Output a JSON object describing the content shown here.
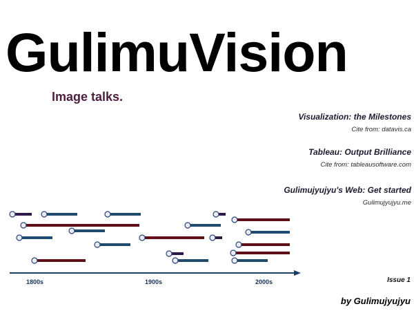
{
  "title": "GulimuVision",
  "tagline": "Image talks.",
  "references": [
    {
      "title": "Visualization: the Milestones",
      "cite": "Cite from: datavis.ca"
    },
    {
      "title": "Tableau: Output Brilliance",
      "cite": "Cite from: tableausoftware.com"
    },
    {
      "title": "Gulimujyujyu's Web: Get started",
      "cite": "Gulimujyujyu.me"
    }
  ],
  "timeline": {
    "axis_labels": [
      "1800s",
      "1900s",
      "2000s"
    ],
    "colors": {
      "red": "#5e0f18",
      "blue": "#1e4a6b",
      "purple": "#2e1a4a",
      "axis": "#1a3e66",
      "node_fill": "#e8eef8",
      "node_stroke": "#2c3e78"
    }
  },
  "issue": "Issue 1",
  "byline": "by Gulimujyujyu"
}
